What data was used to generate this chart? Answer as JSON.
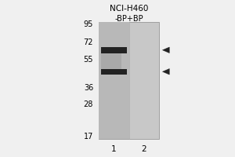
{
  "title_line1": "NCI-H460",
  "title_line2": "-BP+BP",
  "mw_markers": [
    95,
    72,
    55,
    36,
    28,
    17
  ],
  "lane_labels": [
    "1",
    "2"
  ],
  "band1_mw": 64,
  "band2_mw": 46,
  "figure_bg": "#f0f0f0",
  "blot_bg": "#c8c8c8",
  "lane1_bg": "#b8b8b8",
  "lane2_bg": "#c8c8c8",
  "band_color": "#222222",
  "arrow_color": "#222222",
  "title_fontsize": 7.5,
  "subtitle_fontsize": 7.0,
  "mw_fontsize": 7.0,
  "lane_label_fontsize": 7.5
}
